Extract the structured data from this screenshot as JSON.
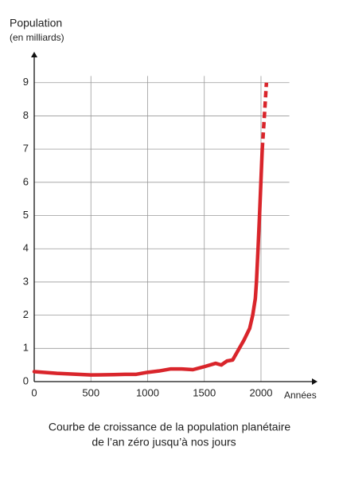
{
  "chart_data": {
    "type": "line",
    "y_label": "Population",
    "y_label_sub": "(en milliards)",
    "x_label": "Années",
    "caption": [
      "Courbe de croissance de la population planétaire",
      "de l’an zéro jusqu’à nos jours"
    ],
    "xlim": [
      0,
      2250
    ],
    "ylim": [
      0,
      9.2
    ],
    "xticks": [
      0,
      500,
      1000,
      1500,
      2000
    ],
    "yticks": [
      0,
      1,
      2,
      3,
      4,
      5,
      6,
      7,
      8,
      9
    ],
    "grid": true,
    "series": [
      {
        "color": "#d9252b",
        "style": "solid",
        "x": [
          0,
          200,
          500,
          700,
          800,
          900,
          1000,
          1100,
          1200,
          1300,
          1400,
          1500,
          1600,
          1650,
          1700,
          1750,
          1800,
          1850,
          1900,
          1927,
          1950,
          1960,
          1974,
          1987,
          1999,
          2011
        ],
        "values": [
          0.3,
          0.25,
          0.2,
          0.21,
          0.22,
          0.22,
          0.28,
          0.32,
          0.38,
          0.38,
          0.36,
          0.45,
          0.55,
          0.5,
          0.62,
          0.65,
          0.95,
          1.25,
          1.6,
          2.0,
          2.5,
          3.0,
          4.0,
          5.0,
          6.0,
          7.0
        ]
      },
      {
        "color": "#d9252b",
        "style": "dashed",
        "x": [
          2011,
          2030,
          2048
        ],
        "values": [
          7.0,
          8.0,
          9.0
        ]
      }
    ]
  }
}
